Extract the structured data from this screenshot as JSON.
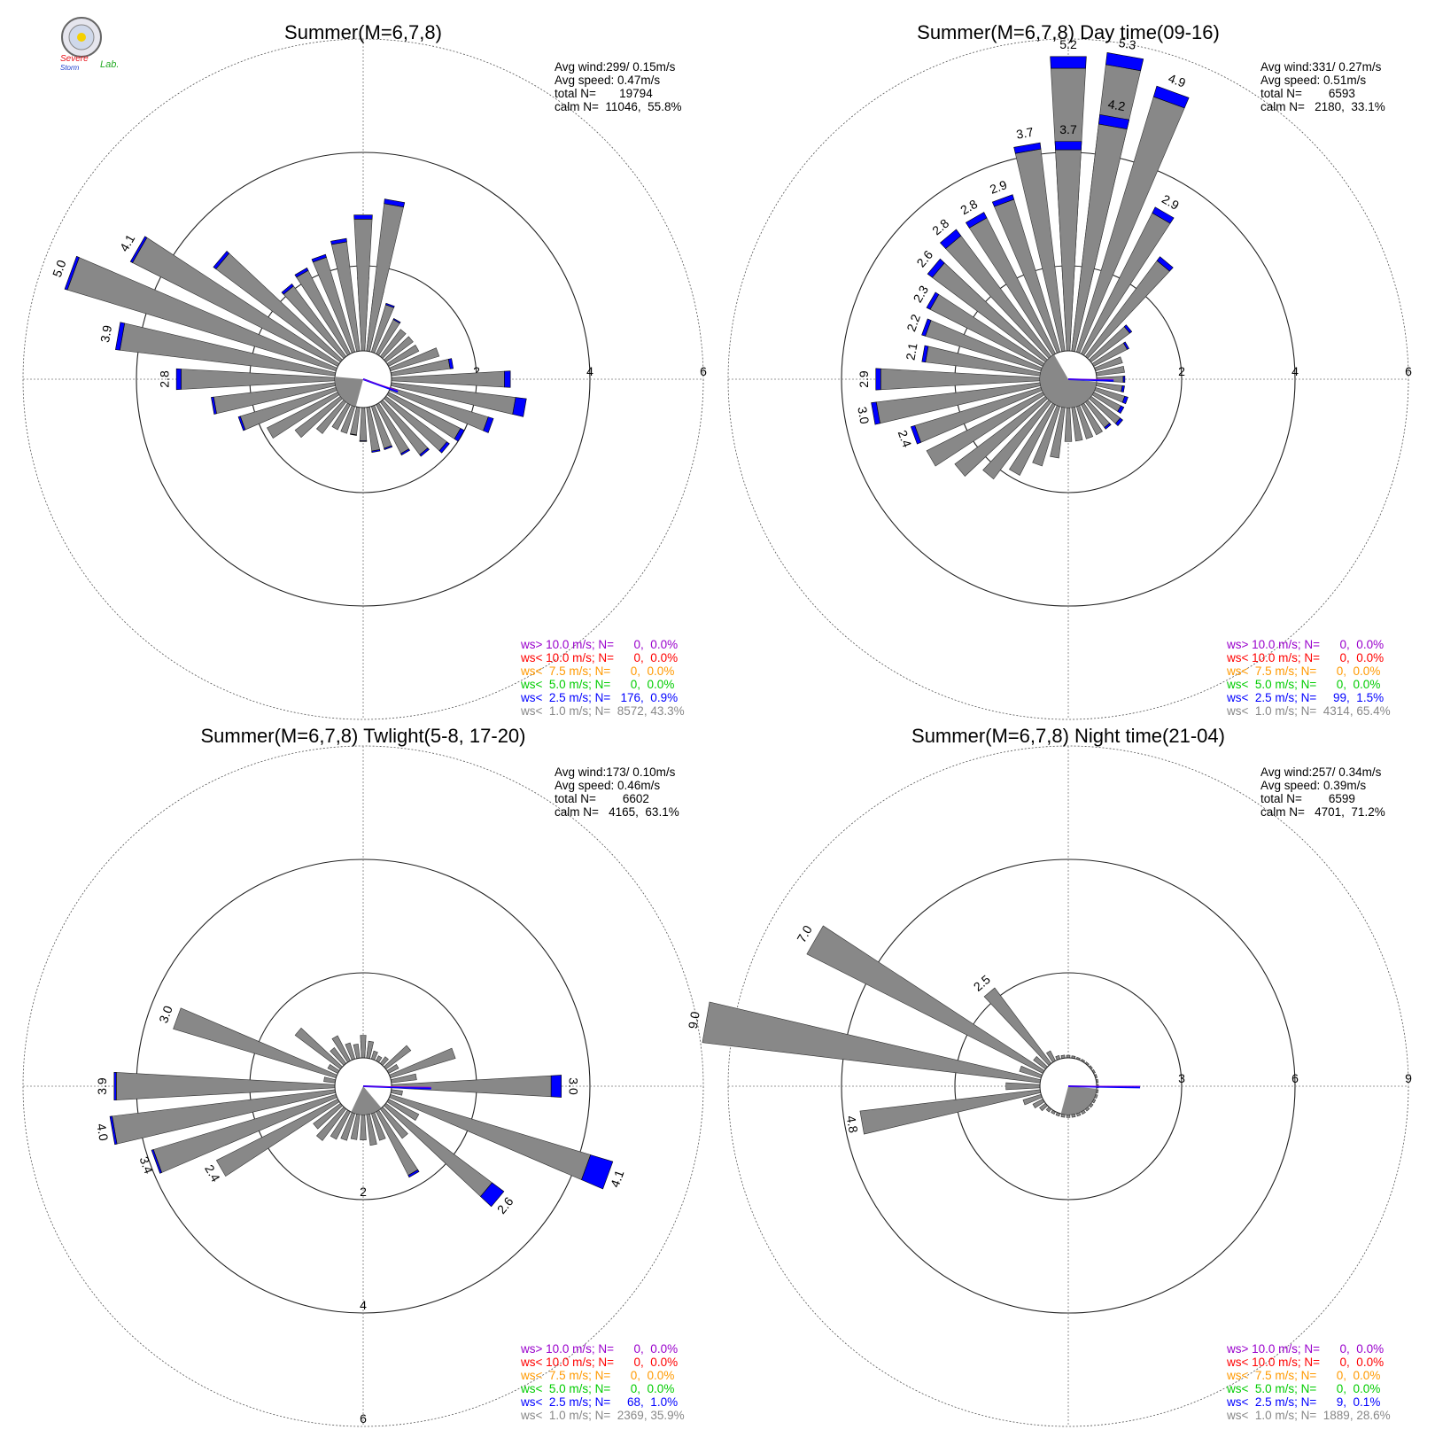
{
  "logo": {
    "line1": "Severe",
    "line2": "Storm",
    "line3": "Lab."
  },
  "speed_class_colors": [
    "#888888",
    "#0000ff",
    "#00cc00",
    "#ff9900",
    "#ff0000",
    "#9900cc"
  ],
  "chart_data": [
    {
      "type": "wind_rose",
      "title": "Summer(M=6,7,8)",
      "stats": {
        "avg_wind": "Avg wind:299/ 0.15m/s",
        "avg_speed": "Avg speed: 0.47m/s",
        "total_n": "total N=       19794",
        "calm_n": "calm N=  11046,  55.8%"
      },
      "rings": [
        2,
        4,
        6
      ],
      "ring_labels": [
        "2",
        "4",
        "6"
      ],
      "ring_label_side": "east",
      "calm_radius": 1.0,
      "direction_step_deg": 10,
      "direction_start_deg": 0,
      "values": [
        1.3,
        1.1,
        0.9,
        0.7,
        0.6,
        0.6,
        0.6,
        0.9,
        1.1,
        2.1,
        2.4,
        1.9,
        1.5,
        1.4,
        1.2,
        1.0,
        0.8,
        0.8,
        0.6,
        0.5,
        0.5,
        0.5,
        0.7,
        1.0,
        1.4,
        1.8,
        2.2,
        2.8,
        3.9,
        5.0,
        4.1,
        2.8,
        1.6,
        1.7,
        1.8,
        2.0,
        2.4,
        2.7
      ],
      "blue_fraction": [
        0.04,
        0.03,
        0.03,
        0.03,
        0.0,
        0.0,
        0.0,
        0.0,
        0.05,
        0.05,
        0.08,
        0.05,
        0.05,
        0.04,
        0.03,
        0.03,
        0.03,
        0.03,
        0.02,
        0.02,
        0.0,
        0.0,
        0.0,
        0.0,
        0.0,
        0.02,
        0.02,
        0.03,
        0.02,
        0.01,
        0.01,
        0.02,
        0.03,
        0.03,
        0.03,
        0.03,
        0.03,
        0.03
      ],
      "labeled": {
        "27": "2.8",
        "28": "3.9",
        "29": "5.0",
        "30": "4.1"
      },
      "mean_vector": {
        "direction": 110,
        "length": 0.45
      },
      "calm_wedge": {
        "start": 195,
        "end": 275
      },
      "legend": [
        {
          "text": "ws> 10.0 m/s; N=      0,  0.0%",
          "color": "#9900cc"
        },
        {
          "text": "ws< 10.0 m/s; N=      0,  0.0%",
          "color": "#ff0000"
        },
        {
          "text": "ws<  7.5 m/s; N=      0,  0.0%",
          "color": "#ff9900"
        },
        {
          "text": "ws<  5.0 m/s; N=      0,  0.0%",
          "color": "#00cc00"
        },
        {
          "text": "ws<  2.5 m/s; N=   176,  0.9%",
          "color": "#0000ff"
        },
        {
          "text": "ws<  1.0 m/s; N=  8572, 43.3%",
          "color": "#888888"
        }
      ]
    },
    {
      "type": "wind_rose",
      "title": "Summer(M=6,7,8) Day time(09-16)",
      "stats": {
        "avg_wind": "Avg wind:331/ 0.27m/s",
        "avg_speed": "Avg speed: 0.51m/s",
        "total_n": "total N=        6593",
        "calm_n": "calm N=   2180,  33.1%"
      },
      "rings": [
        2,
        4,
        6
      ],
      "ring_labels": [
        "2",
        "4",
        "6"
      ],
      "ring_label_side": "east",
      "calm_radius": 1.0,
      "direction_step_deg": 10,
      "direction_start_deg": 0,
      "values": [
        5.2,
        5.3,
        4.9,
        2.9,
        2.2,
        0.9,
        0.7,
        0.5,
        0.5,
        0.5,
        0.5,
        0.6,
        0.6,
        0.7,
        0.6,
        0.6,
        0.6,
        0.6,
        0.6,
        0.9,
        1.1,
        1.4,
        1.7,
        2.0,
        2.3,
        2.4,
        3.0,
        2.9,
        2.1,
        2.2,
        2.3,
        2.6,
        2.8,
        2.8,
        2.9,
        3.7,
        3.7,
        4.2
      ],
      "blue_fraction": [
        0.04,
        0.04,
        0.04,
        0.04,
        0.04,
        0.05,
        0.05,
        0.0,
        0.0,
        0.06,
        0.08,
        0.1,
        0.1,
        0.08,
        0.06,
        0.0,
        0.0,
        0.0,
        0.0,
        0.0,
        0.0,
        0.0,
        0.0,
        0.0,
        0.0,
        0.03,
        0.03,
        0.03,
        0.03,
        0.03,
        0.03,
        0.04,
        0.05,
        0.04,
        0.03,
        0.03,
        0.04,
        0.04
      ],
      "labeled": {
        "0": "5.2",
        "1": "5.3",
        "2": "4.9",
        "3": "2.9",
        "25": "2.4",
        "26": "3.0",
        "27": "2.9",
        "28": "2.1",
        "29": "2.2",
        "30": "2.3",
        "31": "2.6",
        "32": "2.8",
        "33": "2.8",
        "34": "2.9",
        "35": "3.7",
        "36": "3.7",
        "37": "4.2"
      },
      "mean_vector": {
        "direction": 92,
        "length": 0.6
      },
      "calm_wedge": {
        "start": 95,
        "end": 330
      },
      "legend": [
        {
          "text": "ws> 10.0 m/s; N=      0,  0.0%",
          "color": "#9900cc"
        },
        {
          "text": "ws< 10.0 m/s; N=      0,  0.0%",
          "color": "#ff0000"
        },
        {
          "text": "ws<  7.5 m/s; N=      0,  0.0%",
          "color": "#ff9900"
        },
        {
          "text": "ws<  5.0 m/s; N=      0,  0.0%",
          "color": "#00cc00"
        },
        {
          "text": "ws<  2.5 m/s; N=     99,  1.5%",
          "color": "#0000ff"
        },
        {
          "text": "ws<  1.0 m/s; N=  4314, 65.4%",
          "color": "#888888"
        }
      ]
    },
    {
      "type": "wind_rose",
      "title": "Summer(M=6,7,8) Twlight(5-8, 17-20)",
      "stats": {
        "avg_wind": "Avg wind:173/ 0.10m/s",
        "avg_speed": "Avg speed: 0.46m/s",
        "total_n": "total N=        6602",
        "calm_n": "calm N=   4165,  63.1%"
      },
      "rings": [
        2,
        4,
        6
      ],
      "ring_labels": [
        "2",
        "4",
        "6"
      ],
      "ring_label_side": "south",
      "calm_radius": 1.0,
      "direction_step_deg": 10,
      "direction_start_deg": 0,
      "values": [
        0.3,
        0.2,
        0.15,
        0.1,
        0.15,
        0.55,
        0.2,
        1.2,
        0.45,
        3.0,
        0.2,
        4.1,
        0.6,
        2.6,
        0.65,
        1.3,
        0.5,
        0.55,
        0.45,
        0.45,
        0.5,
        0.55,
        0.7,
        0.6,
        2.4,
        3.4,
        4.0,
        3.9,
        0.2,
        3.0,
        0.2,
        1.0,
        0.35,
        0.5,
        0.3,
        0.25,
        0.4,
        0.3
      ],
      "blue_fraction": [
        0.0,
        0.0,
        0.0,
        0.0,
        0.0,
        0.0,
        0.0,
        0.0,
        0.0,
        0.06,
        0.0,
        0.1,
        0.0,
        0.1,
        0.0,
        0.03,
        0.0,
        0.0,
        0.0,
        0.0,
        0.0,
        0.0,
        0.0,
        0.0,
        0.0,
        0.01,
        0.01,
        0.01,
        0.0,
        0.0,
        0.0,
        0.0,
        0.0,
        0.0,
        0.0,
        0.0,
        0.0,
        0.0
      ],
      "labeled": {
        "9": "3.0",
        "11": "4.1",
        "13": "2.6",
        "24": "2.4",
        "25": "3.4",
        "26": "4.0",
        "27": "3.9",
        "29": "3.0"
      },
      "mean_vector": {
        "direction": 92,
        "length": 1.0
      },
      "calm_wedge": {
        "start": 140,
        "end": 205
      },
      "legend": [
        {
          "text": "ws> 10.0 m/s; N=      0,  0.0%",
          "color": "#9900cc"
        },
        {
          "text": "ws< 10.0 m/s; N=      0,  0.0%",
          "color": "#ff0000"
        },
        {
          "text": "ws<  7.5 m/s; N=      0,  0.0%",
          "color": "#ff9900"
        },
        {
          "text": "ws<  5.0 m/s; N=      0,  0.0%",
          "color": "#00cc00"
        },
        {
          "text": "ws<  2.5 m/s; N=     68,  1.0%",
          "color": "#0000ff"
        },
        {
          "text": "ws<  1.0 m/s; N=  2369, 35.9%",
          "color": "#888888"
        }
      ]
    },
    {
      "type": "wind_rose",
      "title": "Summer(M=6,7,8) Night time(21-04)",
      "stats": {
        "avg_wind": "Avg wind:257/ 0.34m/s",
        "avg_speed": "Avg speed: 0.39m/s",
        "total_n": "total N=        6599",
        "calm_n": "calm N=   4701,  71.2%"
      },
      "rings": [
        3,
        6,
        9
      ],
      "ring_labels": [
        "3",
        "6",
        "9"
      ],
      "ring_label_side": "east",
      "calm_radius": 1.5,
      "direction_step_deg": 10,
      "direction_start_deg": 0,
      "values": [
        0.06,
        0.06,
        0.05,
        0.05,
        0.05,
        0.05,
        0.05,
        0.05,
        0.05,
        0.05,
        0.05,
        0.06,
        0.06,
        0.07,
        0.07,
        0.08,
        0.08,
        0.08,
        0.08,
        0.08,
        0.08,
        0.08,
        0.1,
        0.2,
        0.3,
        0.5,
        4.8,
        0.9,
        9.0,
        0.6,
        7.0,
        0.4,
        2.5,
        0.3,
        0.1,
        0.08,
        0.07,
        0.06
      ],
      "blue_fraction": [
        0.0,
        0.0,
        0.0,
        0.0,
        0.0,
        0.0,
        0.0,
        0.0,
        0.0,
        0.0,
        0.0,
        0.0,
        0.0,
        0.0,
        0.0,
        0.0,
        0.0,
        0.0,
        0.0,
        0.0,
        0.0,
        0.0,
        0.0,
        0.0,
        0.0,
        0.0,
        0.0,
        0.0,
        0.0,
        0.0,
        0.0,
        0.0,
        0.0,
        0.0,
        0.0,
        0.0,
        0.0,
        0.0
      ],
      "labeled": {
        "26": "4.8",
        "28": "9.0",
        "30": "7.0",
        "32": "2.5"
      },
      "mean_vector": {
        "direction": 91,
        "length": 1.6
      },
      "calm_wedge": {
        "start": 95,
        "end": 195
      },
      "legend": [
        {
          "text": "ws> 10.0 m/s; N=      0,  0.0%",
          "color": "#9900cc"
        },
        {
          "text": "ws< 10.0 m/s; N=      0,  0.0%",
          "color": "#ff0000"
        },
        {
          "text": "ws<  7.5 m/s; N=      0,  0.0%",
          "color": "#ff9900"
        },
        {
          "text": "ws<  5.0 m/s; N=      0,  0.0%",
          "color": "#00cc00"
        },
        {
          "text": "ws<  2.5 m/s; N=      9,  0.1%",
          "color": "#0000ff"
        },
        {
          "text": "ws<  1.0 m/s; N=  1889, 28.6%",
          "color": "#888888"
        }
      ]
    }
  ]
}
